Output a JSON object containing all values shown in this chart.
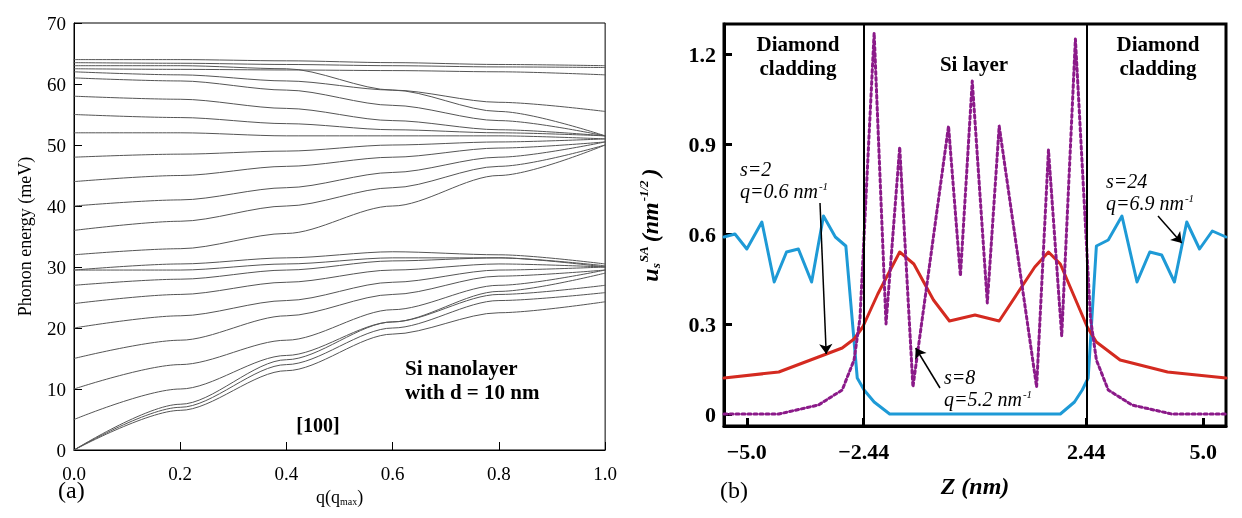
{
  "chart_data": [
    {
      "type": "line",
      "xlabel": "q(q$_{max}$)",
      "ylabel": "Phonon energy (meV)",
      "xlim": [
        0,
        1
      ],
      "ylim": [
        0,
        70
      ],
      "xticks": [
        {
          "value": 0,
          "label": "0.0"
        },
        {
          "value": 0.2,
          "label": "0.2"
        },
        {
          "value": 0.4,
          "label": "0.4"
        },
        {
          "value": 0.6,
          "label": "0.6"
        },
        {
          "value": 0.8,
          "label": "0.8"
        },
        {
          "value": 1,
          "label": "1.0"
        }
      ],
      "yticks": [
        0,
        10,
        20,
        30,
        40,
        50,
        60,
        70
      ],
      "marker": "none",
      "line_style": "solid",
      "annotations": [
        "Si nanolayer\nwith d = 10 nm",
        "[100]",
        "(a)"
      ],
      "x": [
        0,
        0.2,
        0.4,
        0.6,
        0.8,
        1
      ],
      "series": [
        {
          "color": "#555555",
          "values": [
            64,
            64,
            63.8,
            63.5,
            63.2,
            63
          ]
        },
        {
          "color": "#555555",
          "values": [
            63.5,
            63.4,
            63.2,
            63,
            62.8,
            62.7
          ]
        },
        {
          "color": "#555555",
          "values": [
            62.5,
            62.4,
            62.3,
            62.2,
            62,
            61.5
          ]
        },
        {
          "color": "#555555",
          "values": [
            62,
            61.5,
            60.5,
            59,
            57,
            55.5
          ]
        },
        {
          "color": "#555555",
          "values": [
            63,
            63,
            62.5,
            59,
            55.5,
            51.5
          ]
        },
        {
          "color": "#555555",
          "values": [
            61,
            60.5,
            59,
            56.5,
            54,
            51.5
          ]
        },
        {
          "color": "#555555",
          "values": [
            58,
            57.5,
            56,
            54,
            52.5,
            51.5
          ]
        },
        {
          "color": "#555555",
          "values": [
            55,
            54.5,
            53.5,
            52.5,
            52,
            51.5
          ]
        },
        {
          "color": "#555555",
          "values": [
            52,
            52,
            51.5,
            51.5,
            51.5,
            51
          ]
        },
        {
          "color": "#555555",
          "values": [
            48,
            48.5,
            49,
            50,
            50.5,
            51
          ]
        },
        {
          "color": "#555555",
          "values": [
            44,
            45,
            46.5,
            48,
            49.5,
            50.5
          ]
        },
        {
          "color": "#555555",
          "values": [
            40,
            41,
            43,
            45.5,
            48,
            50.5
          ]
        },
        {
          "color": "#555555",
          "values": [
            36,
            37.5,
            40,
            43,
            46.5,
            50
          ]
        },
        {
          "color": "#555555",
          "values": [
            32,
            33,
            35.5,
            40,
            45,
            50
          ]
        },
        {
          "color": "#555555",
          "values": [
            29.5,
            30.5,
            31.5,
            32.5,
            32,
            30.5
          ]
        },
        {
          "color": "#555555",
          "values": [
            29.5,
            29.5,
            30.5,
            31.5,
            31.5,
            30
          ]
        },
        {
          "color": "#555555",
          "values": [
            27,
            28,
            29.5,
            31,
            31.5,
            30.2
          ]
        },
        {
          "color": "#555555",
          "values": [
            24,
            25.5,
            27.5,
            29.5,
            30.5,
            30
          ]
        },
        {
          "color": "#555555",
          "values": [
            20,
            22,
            24.5,
            27.5,
            29.5,
            30
          ]
        },
        {
          "color": "#555555",
          "values": [
            15,
            18,
            22,
            25.5,
            28.5,
            29.5
          ]
        },
        {
          "color": "#555555",
          "values": [
            10,
            14,
            18,
            23,
            27,
            29.5
          ]
        },
        {
          "color": "#555555",
          "values": [
            5,
            10,
            15.5,
            21,
            26,
            29
          ]
        },
        {
          "color": "#555555",
          "values": [
            0,
            7.5,
            14.8,
            21,
            25.5,
            27
          ]
        },
        {
          "color": "#555555",
          "values": [
            0,
            7,
            14,
            20,
            24.5,
            25.8
          ]
        },
        {
          "color": "#555555",
          "values": [
            0,
            6.5,
            13,
            19,
            22.5,
            24.3
          ]
        }
      ]
    },
    {
      "type": "line",
      "xlabel": "Z (nm)",
      "ylabel": "u$_{s}$$^{SA}$(nm$^{-1/2}$)",
      "xlim": [
        -5.5,
        5.5
      ],
      "ylim": [
        -0.04,
        1.3
      ],
      "xticks": [
        {
          "value": -5,
          "label": "−5.0"
        },
        {
          "value": -2.44,
          "label": "−2.44"
        },
        {
          "value": 2.44,
          "label": "2.44"
        },
        {
          "value": 5,
          "label": "5.0"
        }
      ],
      "yticks": [
        0,
        0.3,
        0.6,
        0.9,
        1.2
      ],
      "marker": "none",
      "line_style": "solid",
      "ref_lines": [
        {
          "axis": "x",
          "value": -2.44,
          "color": "#000000"
        },
        {
          "axis": "x",
          "value": 2.44,
          "color": "#000000"
        }
      ],
      "annotations": [
        "Diamond\ncladding",
        "Si layer",
        "Diamond\ncladding",
        "(b)",
        {
          "text": "s=2\nq=0.6 nm$^{-1}$",
          "x": -3.26,
          "y": 0.2
        },
        {
          "text": "s=8\nq=5.2 nm$^{-1}$",
          "x": -1.3,
          "y": 0.22
        },
        {
          "text": "s=24\nq=6.9 nm$^{-1}$",
          "x": 4.53,
          "y": 0.57
        }
      ],
      "series": [
        {
          "color": "#1e9ad6",
          "x": [
            -5.5,
            -5.26,
            -5,
            -4.67,
            -4.4,
            -4.13,
            -3.87,
            -3.58,
            -3.32,
            -3.06,
            -2.83,
            -2.58,
            -2.43,
            -2.21,
            -1.87,
            1.87,
            2.18,
            2.35,
            2.48,
            2.66,
            2.92,
            3.22,
            3.55,
            3.83,
            4.09,
            4.37,
            4.64,
            4.92,
            5.2,
            5.5
          ],
          "values": [
            0.59,
            0.6,
            0.55,
            0.64,
            0.44,
            0.54,
            0.55,
            0.44,
            0.66,
            0.59,
            0.56,
            0.12,
            0.08,
            0.04,
            0,
            0,
            0.04,
            0.08,
            0.12,
            0.56,
            0.58,
            0.66,
            0.44,
            0.54,
            0.53,
            0.44,
            0.64,
            0.55,
            0.61,
            0.59
          ]
        },
        {
          "color": "#d42a20",
          "x": [
            -5.5,
            -4.3,
            -3.43,
            -2.91,
            -2.65,
            -2.46,
            -2.13,
            -1.65,
            -1.34,
            -0.91,
            -0.56,
            0,
            0.53,
            0.92,
            1.31,
            1.61,
            1.87,
            2.46,
            2.66,
            3.18,
            4.22,
            5.5
          ],
          "values": [
            0.12,
            0.14,
            0.19,
            0.22,
            0.25,
            0.29,
            0.4,
            0.54,
            0.5,
            0.38,
            0.31,
            0.33,
            0.31,
            0.4,
            0.49,
            0.54,
            0.5,
            0.29,
            0.24,
            0.18,
            0.14,
            0.12
          ]
        },
        {
          "color": "#8b1a89",
          "line_style": "dotted",
          "x": [
            -5.5,
            -4.3,
            -3.43,
            -2.91,
            -2.65,
            -2.52,
            -2.21,
            -1.95,
            -1.65,
            -1.36,
            -0.58,
            -0.32,
            -0.06,
            0.27,
            0.53,
            1.35,
            1.61,
            1.9,
            2.2,
            2.53,
            2.66,
            2.92,
            3.44,
            4.31,
            5.5
          ],
          "values": [
            0,
            0,
            0.03,
            0.08,
            0.18,
            0.32,
            1.27,
            0.3,
            0.89,
            0.09,
            0.96,
            0.46,
            1.11,
            0.37,
            0.96,
            0.09,
            0.88,
            0.26,
            1.25,
            0.32,
            0.18,
            0.08,
            0.03,
            0,
            0
          ]
        }
      ]
    }
  ]
}
